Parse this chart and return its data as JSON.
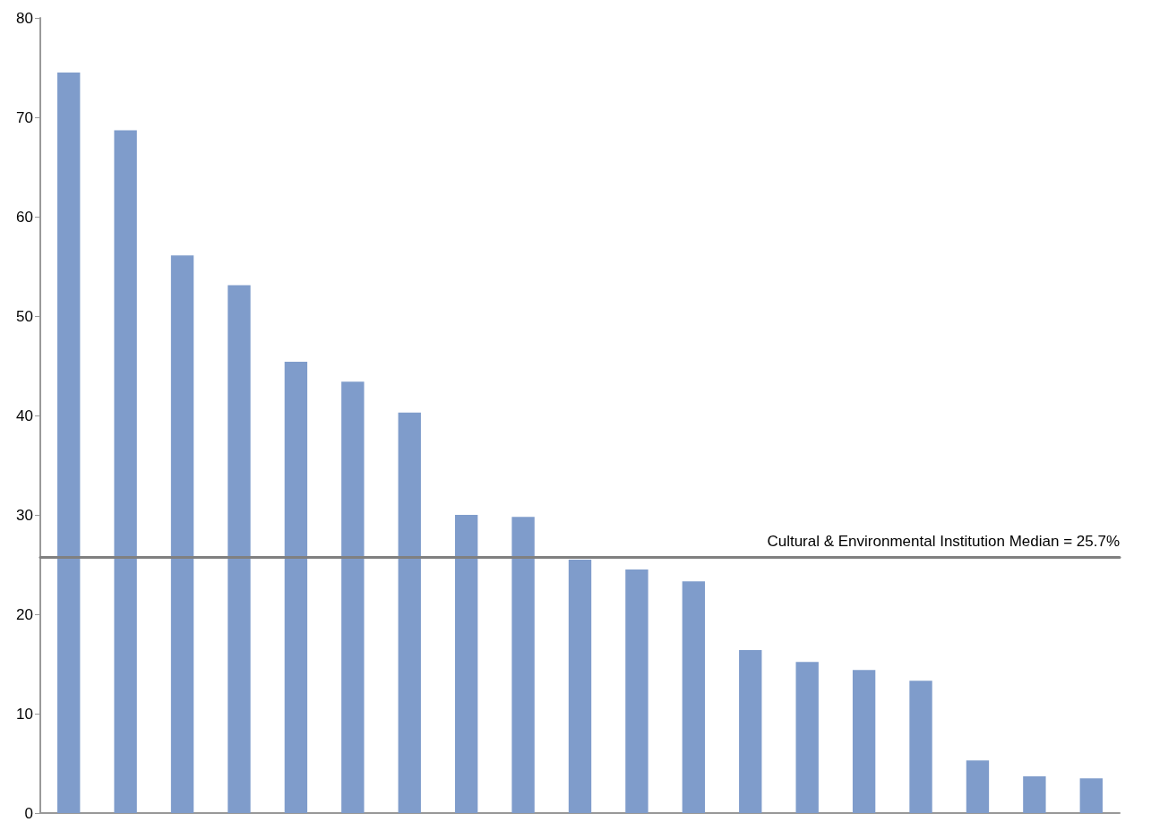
{
  "chart_data": {
    "type": "bar",
    "categories": [
      null,
      null,
      null,
      null,
      null,
      null,
      null,
      null,
      null,
      null,
      null,
      null,
      null,
      null,
      null,
      null,
      null,
      null,
      null
    ],
    "values": [
      74.5,
      68.7,
      56.1,
      53.1,
      45.4,
      43.4,
      40.3,
      30.0,
      29.8,
      25.5,
      24.5,
      23.3,
      16.4,
      15.2,
      14.4,
      13.3,
      5.3,
      3.7,
      3.5
    ],
    "color": "#7f9ccb",
    "ylim": [
      0,
      80
    ],
    "yticks": [
      0,
      10,
      20,
      30,
      40,
      50,
      60,
      70,
      80
    ],
    "grid": false,
    "ref_lines": [
      {
        "axis": "y",
        "value": 25.7,
        "label": "Cultural & Environmental Institution Median = 25.7%",
        "color": "#808080"
      }
    ]
  }
}
